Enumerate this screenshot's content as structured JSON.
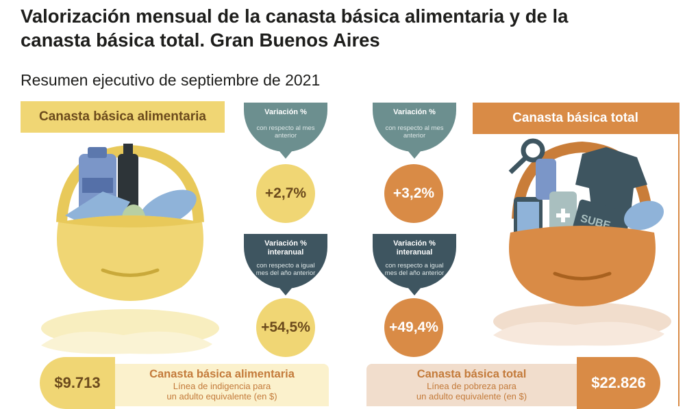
{
  "header": {
    "title": "Valorización mensual de la canasta básica alimentaria y de la canasta básica total. Gran Buenos Aires",
    "subtitle": "Resumen ejecutivo de septiembre de 2021"
  },
  "cba": {
    "banner": "Canasta básica alimentaria",
    "monthly": {
      "title": "Variación %",
      "desc": "con respecto al mes anterior",
      "value": "+2,7%"
    },
    "yearly": {
      "title": "Variación % interanual",
      "desc": "con respecto a igual mes del año anterior",
      "value": "+54,5%"
    },
    "amount": "$9.713",
    "panel_title": "Canasta básica alimentaria",
    "panel_desc_1": "Línea de indigencia para",
    "panel_desc_2": "un adulto equivalente (en $)"
  },
  "cbt": {
    "banner": "Canasta básica total",
    "monthly": {
      "title": "Variación %",
      "desc": "con respecto al mes anterior",
      "value": "+3,2%"
    },
    "yearly": {
      "title": "Variación % interanual",
      "desc": "con respecto a igual mes del año anterior",
      "value": "+49,4%"
    },
    "amount": "$22.826",
    "panel_title": "Canasta básica total",
    "panel_desc_1": "Línea de pobreza para",
    "panel_desc_2": "un adulto equivalente (en $)",
    "card_label": "SUBE"
  },
  "colors": {
    "yellow": "#f0d674",
    "orange": "#d98b46",
    "teal": "#6c8f8f",
    "dark_teal": "#3e5560",
    "brown_text": "#6b4a1c"
  }
}
